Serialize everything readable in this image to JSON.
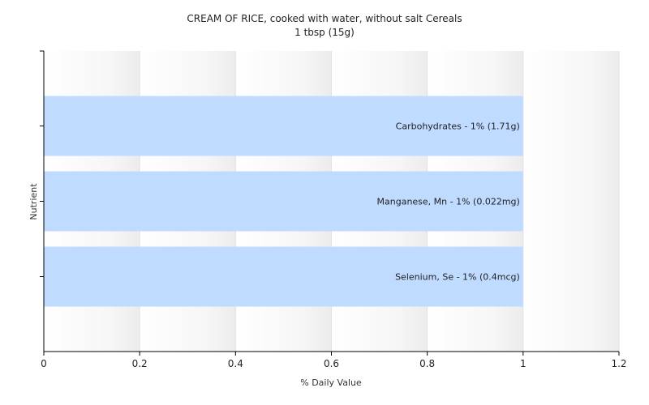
{
  "chart_data": {
    "type": "bar",
    "orientation": "horizontal",
    "title": "CREAM OF RICE, cooked with water, without salt Cereals",
    "subtitle": "1 tbsp (15g)",
    "xlabel": "% Daily Value",
    "ylabel": "Nutrient",
    "xlim": [
      0,
      1.2
    ],
    "x_ticks": [
      "0",
      "0.2",
      "0.4",
      "0.6",
      "0.8",
      "1",
      "1.2"
    ],
    "grid": true,
    "legend": "none",
    "bar_color": "#bfdbff",
    "categories": [
      "Carbohydrates - 1% (1.71g)",
      "Manganese, Mn - 1% (0.022mg)",
      "Selenium, Se - 1% (0.4mcg)"
    ],
    "values": [
      1,
      1,
      1
    ]
  }
}
